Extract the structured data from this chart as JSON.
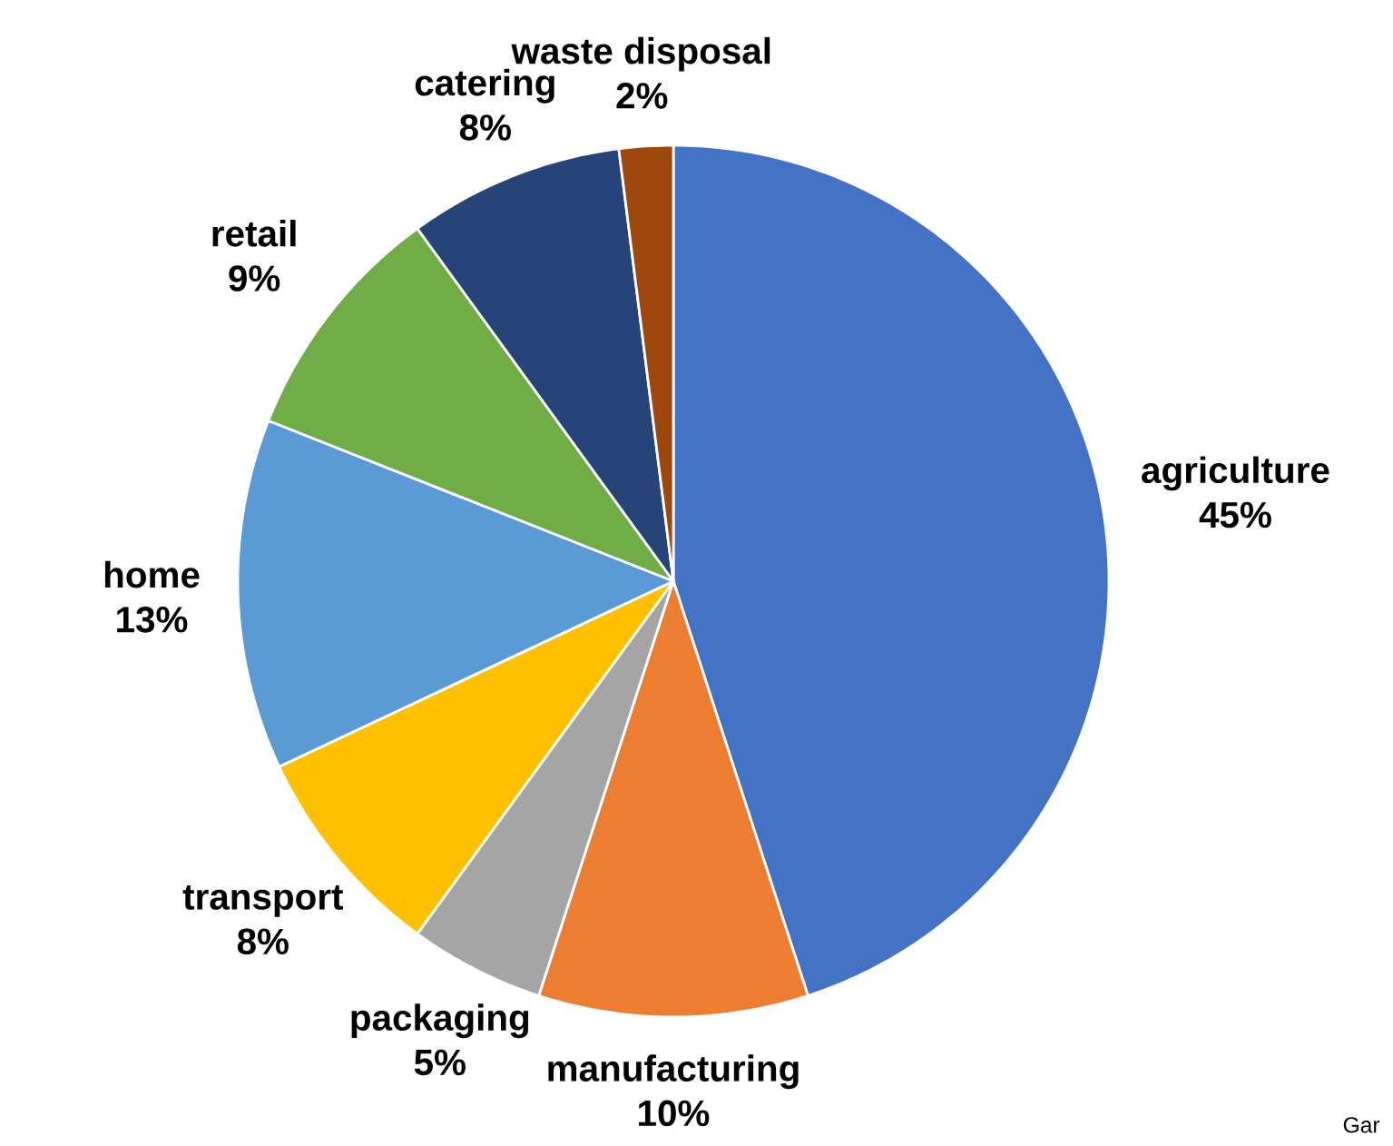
{
  "chart_data": {
    "type": "pie",
    "categories": [
      "agriculture",
      "manufacturing",
      "packaging",
      "transport",
      "home",
      "retail",
      "catering",
      "waste disposal"
    ],
    "values": [
      45,
      10,
      5,
      8,
      13,
      9,
      8,
      2
    ],
    "value_labels": [
      "45%",
      "10%",
      "5%",
      "8%",
      "13%",
      "9%",
      "8%",
      "2%"
    ],
    "colors": [
      "#4472c4",
      "#ed7d31",
      "#a5a5a5",
      "#ffc000",
      "#5b9bd5",
      "#70ad47",
      "#264478",
      "#9e480e"
    ],
    "annotations": [
      "Gar"
    ]
  }
}
